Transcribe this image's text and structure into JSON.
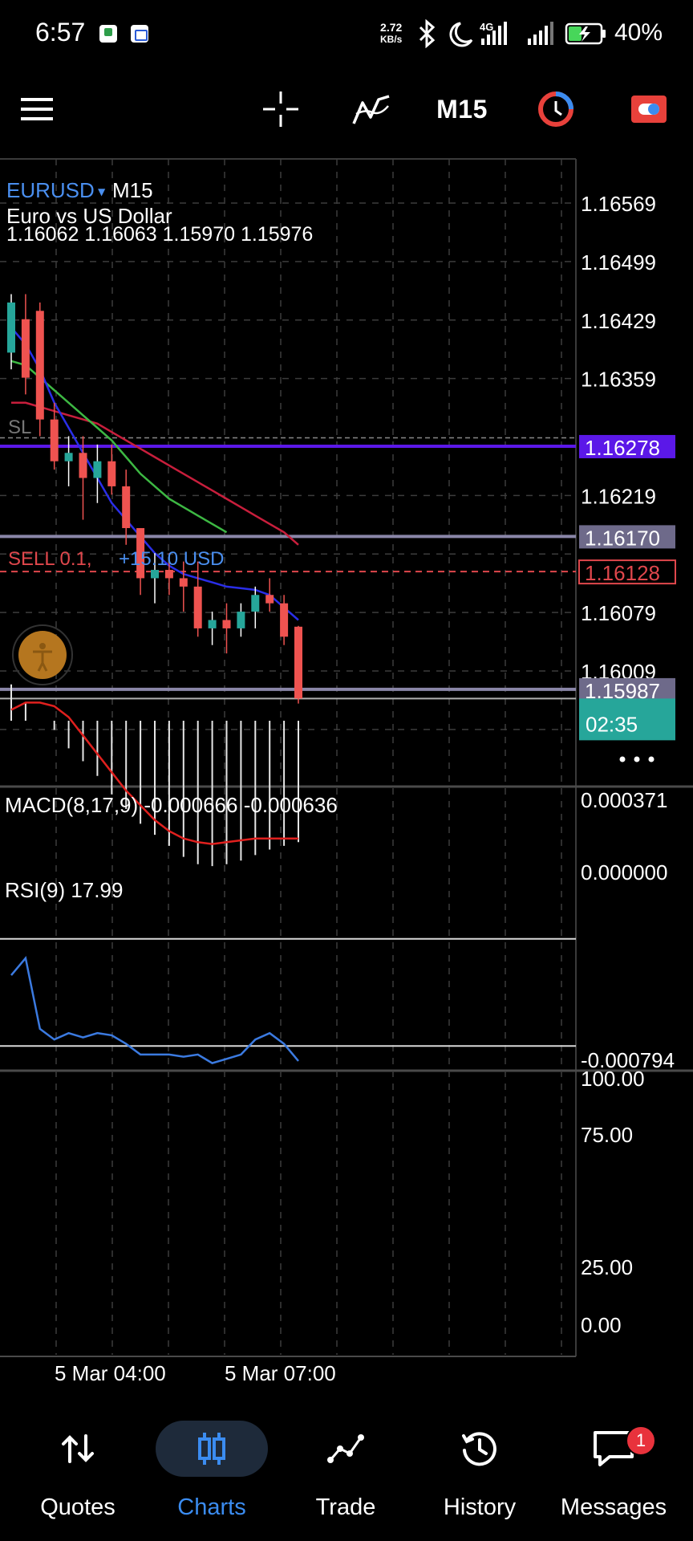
{
  "status_bar": {
    "time": "6:57",
    "net_speed_value": "2.72",
    "net_speed_unit": "KB/s",
    "network": "4G",
    "battery": "40%",
    "icons": [
      "app-notification-icon",
      "app-notification-icon",
      "bluetooth-icon",
      "moon-icon",
      "signal-icon",
      "signal-icon",
      "battery-charging-icon"
    ]
  },
  "toolbar": {
    "menu_icon": "hamburger-icon",
    "crosshair_icon": "crosshair-icon",
    "indicators_icon": "indicators-icon",
    "timeframe": "M15",
    "clock_icon": "clock-icon",
    "trade_icon": "one-click-trade-icon"
  },
  "chart": {
    "symbol": "EURUSD",
    "symbol_arrow": "▼",
    "timeframe": "M15",
    "description": "Euro vs US Dollar",
    "ohlc": "1.16062 1.16063 1.15970 1.15976",
    "sl_label": "SL",
    "position_label": "SELL 0.1,",
    "position_profit": "+15.10 USD",
    "price_scale": [
      "1.16569",
      "1.16499",
      "1.16429",
      "1.16359",
      "1.16219",
      "1.16079",
      "1.16009"
    ],
    "hline_blue": "1.16278",
    "hline_gray": "1.16170",
    "entry_price": "1.16128",
    "hline_low": "1.15987",
    "bid_price": "1.15976",
    "countdown": "02:35",
    "more_icon": "more-dots-icon",
    "time_labels": [
      "5 Mar 04:00",
      "5 Mar 07:00"
    ],
    "colors": {
      "bull": "#26a69a",
      "bear": "#ef5350",
      "ma_fast": "#2a2ee8",
      "ma_mid": "#3db843",
      "ma_slow": "#c81e3c",
      "hline_blue": "#5b18e8",
      "entry": "#e0474c",
      "profit": "#4a8ff0",
      "bid_box": "#26a69a",
      "symbol": "#4a8ff0"
    }
  },
  "macd": {
    "label": "MACD(8,17,9) -0.000666 -0.000636",
    "scale": [
      "0.000371",
      "0.000000",
      "-0.000794"
    ]
  },
  "rsi": {
    "label": "RSI(9) 17.99",
    "scale": [
      "100.00",
      "75.00",
      "25.00",
      "0.00"
    ]
  },
  "chart_data": {
    "type": "candlestick",
    "x_labels": [
      "5 Mar 04:00",
      "5 Mar 07:00"
    ],
    "candles": [
      {
        "o": 1.1639,
        "h": 1.1646,
        "l": 1.1637,
        "c": 1.1645
      },
      {
        "o": 1.1643,
        "h": 1.1646,
        "l": 1.1634,
        "c": 1.1636
      },
      {
        "o": 1.1644,
        "h": 1.1645,
        "l": 1.1629,
        "c": 1.1631
      },
      {
        "o": 1.1631,
        "h": 1.1633,
        "l": 1.1625,
        "c": 1.1626
      },
      {
        "o": 1.1626,
        "h": 1.1629,
        "l": 1.1623,
        "c": 1.1627
      },
      {
        "o": 1.1627,
        "h": 1.1629,
        "l": 1.1619,
        "c": 1.1624
      },
      {
        "o": 1.1624,
        "h": 1.1628,
        "l": 1.1621,
        "c": 1.1626
      },
      {
        "o": 1.1626,
        "h": 1.1628,
        "l": 1.1622,
        "c": 1.1623
      },
      {
        "o": 1.1623,
        "h": 1.1625,
        "l": 1.1616,
        "c": 1.1618
      },
      {
        "o": 1.1618,
        "h": 1.1618,
        "l": 1.161,
        "c": 1.1612
      },
      {
        "o": 1.1612,
        "h": 1.1615,
        "l": 1.1609,
        "c": 1.1613
      },
      {
        "o": 1.1613,
        "h": 1.1615,
        "l": 1.161,
        "c": 1.1612
      },
      {
        "o": 1.1612,
        "h": 1.1614,
        "l": 1.1608,
        "c": 1.1611
      },
      {
        "o": 1.1611,
        "h": 1.1614,
        "l": 1.1605,
        "c": 1.1606
      },
      {
        "o": 1.1606,
        "h": 1.1608,
        "l": 1.1604,
        "c": 1.1607
      },
      {
        "o": 1.1607,
        "h": 1.1609,
        "l": 1.1603,
        "c": 1.1606
      },
      {
        "o": 1.1606,
        "h": 1.1609,
        "l": 1.1605,
        "c": 1.1608
      },
      {
        "o": 1.1608,
        "h": 1.1611,
        "l": 1.1606,
        "c": 1.161
      },
      {
        "o": 1.161,
        "h": 1.1612,
        "l": 1.1608,
        "c": 1.1609
      },
      {
        "o": 1.1609,
        "h": 1.161,
        "l": 1.1604,
        "c": 1.1605
      },
      {
        "o": 1.16062,
        "h": 1.16063,
        "l": 1.1597,
        "c": 1.15976
      }
    ],
    "ma_fast": [
      1.1642,
      1.164,
      1.1637,
      1.1633,
      1.163,
      1.1627,
      1.1624,
      1.1621,
      1.1619,
      1.1617,
      1.1615,
      1.16135,
      1.16125,
      1.1612,
      1.16115,
      1.1611,
      1.16108,
      1.16106,
      1.161,
      1.16085,
      1.1607
    ],
    "ma_mid": [
      1.1638,
      1.16375,
      1.1636,
      1.16345,
      1.1633,
      1.16315,
      1.163,
      1.16285,
      1.16265,
      1.16245,
      1.1623,
      1.16215,
      1.16205,
      1.16195,
      1.16185,
      1.16175
    ],
    "ma_slow": [
      1.1633,
      1.1633,
      1.16325,
      1.1632,
      1.16315,
      1.1631,
      1.16305,
      1.16295,
      1.16285,
      1.16275,
      1.16265,
      1.16255,
      1.16245,
      1.16235,
      1.16225,
      1.16215,
      1.16205,
      1.16195,
      1.16185,
      1.16175,
      1.1616
    ],
    "macd_hist": [
      0.0002,
      0.0001,
      0.0,
      -5e-05,
      -0.00015,
      -0.00022,
      -0.0003,
      -0.0004,
      -0.00048,
      -0.00056,
      -0.00062,
      -0.00068,
      -0.00074,
      -0.00078,
      -0.00079,
      -0.00078,
      -0.00076,
      -0.00073,
      -0.0007,
      -0.00068,
      -0.00066
    ],
    "macd_signal": [
      6e-05,
      0.0001,
      0.0001,
      8e-05,
      2e-05,
      -8e-05,
      -0.00018,
      -0.00028,
      -0.00038,
      -0.00046,
      -0.00054,
      -0.0006,
      -0.00064,
      -0.00066,
      -0.00067,
      -0.00066,
      -0.00065,
      -0.00064,
      -0.00064,
      -0.00064,
      -0.00064
    ],
    "rsi": [
      58,
      66,
      33,
      28,
      31,
      29,
      31,
      30,
      26,
      21,
      21,
      21,
      20,
      21,
      17,
      19,
      21,
      28,
      31,
      26,
      18
    ],
    "ylim_price": [
      1.1592,
      1.1662
    ],
    "ylim_macd": [
      -0.000794,
      0.000371
    ],
    "ylim_rsi": [
      0,
      100
    ]
  }
}
